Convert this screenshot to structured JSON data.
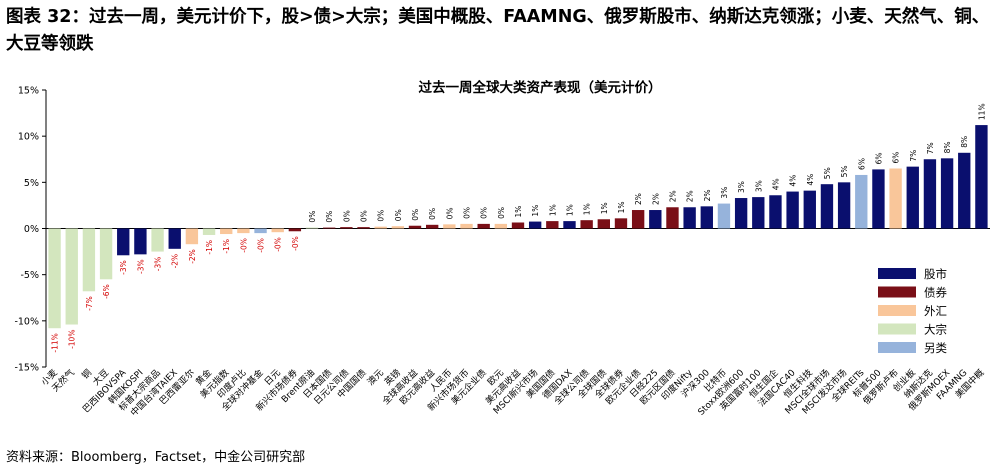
{
  "figure_title": "图表 32：过去一周，美元计价下，股>债>大宗；美国中概股、FAAMNG、俄罗斯股市、纳斯达克领涨；小麦、天然气、铜、大豆等领跌",
  "source": "资料来源：Bloomberg，Factset，中金公司研究部",
  "colors": {
    "股市": "#0a0f6e",
    "债券": "#7a0f17",
    "外汇": "#f9c69a",
    "大宗": "#d3e6be",
    "另类": "#96b3db",
    "negative_label": "#d40000",
    "positive_label": "#000000"
  },
  "chart_data": {
    "type": "bar",
    "title": "过去一周全球大类资产表现（美元计价）",
    "xlabel": "",
    "ylabel": "",
    "ylim": [
      -15,
      15
    ],
    "yticks": [
      -15,
      -10,
      -5,
      0,
      5,
      10,
      15
    ],
    "ytick_labels": [
      "-15%",
      "-10%",
      "-5%",
      "0%",
      "5%",
      "10%",
      "15%"
    ],
    "grid": false,
    "legend_position": "right",
    "legend": [
      "股市",
      "债券",
      "外汇",
      "大宗",
      "另类"
    ],
    "categories": [
      "小麦",
      "天然气",
      "铜",
      "大豆",
      "巴西IBOVSPA",
      "韩国KOSPI",
      "标普大宗商品",
      "中国台湾TAIEX",
      "巴西雷亚尔",
      "黄金",
      "美元指数",
      "印度卢比",
      "全球对冲基金",
      "日元",
      "新兴市场债券",
      "Brent原油",
      "日本国债",
      "日元公司债",
      "中国国债",
      "澳元",
      "英镑",
      "全球高收益",
      "欧元高收益",
      "人民币",
      "新兴市场货币",
      "美元企业债",
      "欧元",
      "美元高收益",
      "MSCI新兴市场",
      "美国国债",
      "德国DAX",
      "全球公司债",
      "全球国债",
      "全球债券",
      "欧元企业债",
      "日经225",
      "欧元区国债",
      "印度Nifty",
      "沪深300",
      "比特币",
      "Stoxx欧洲600",
      "英国富时100",
      "恒生国企",
      "法国CAC40",
      "恒生科技",
      "MSCI全球市场",
      "MSCI发达市场",
      "全球REITs",
      "标普500",
      "俄罗斯卢布",
      "创业板",
      "纳斯达克",
      "俄罗斯MOEX",
      "FAAMNG",
      "美国中概"
    ],
    "values": [
      -10.8,
      -10.4,
      -6.8,
      -5.5,
      -2.9,
      -2.8,
      -2.5,
      -2.2,
      -1.7,
      -0.7,
      -0.6,
      -0.5,
      -0.5,
      -0.4,
      -0.3,
      0.1,
      0.1,
      0.15,
      0.15,
      0.2,
      0.25,
      0.3,
      0.4,
      0.45,
      0.5,
      0.5,
      0.5,
      0.65,
      0.75,
      0.8,
      0.8,
      0.9,
      1.0,
      1.1,
      2.0,
      2.0,
      2.3,
      2.3,
      2.4,
      2.7,
      3.3,
      3.4,
      3.6,
      4.0,
      4.1,
      4.8,
      5.0,
      5.8,
      6.4,
      6.5,
      6.7,
      7.5,
      7.6,
      8.2,
      11.2
    ],
    "data_labels": [
      "-11%",
      "-10%",
      "-7%",
      "-6%",
      "-3%",
      "-3%",
      "-3%",
      "-2%",
      "-2%",
      "-1%",
      "-1%",
      "-0%",
      "-0%",
      "-0%",
      "-0%",
      "0%",
      "0%",
      "0%",
      "0%",
      "0%",
      "0%",
      "0%",
      "0%",
      "0%",
      "0%",
      "0%",
      "0%",
      "1%",
      "1%",
      "1%",
      "1%",
      "1%",
      "1%",
      "1%",
      "2%",
      "2%",
      "2%",
      "2%",
      "2%",
      "3%",
      "3%",
      "3%",
      "4%",
      "4%",
      "4%",
      "5%",
      "5%",
      "6%",
      "6%",
      "6%",
      "7%",
      "7%",
      "8%",
      "8%",
      "11%"
    ],
    "asset_class": [
      "大宗",
      "大宗",
      "大宗",
      "大宗",
      "股市",
      "股市",
      "大宗",
      "股市",
      "外汇",
      "大宗",
      "外汇",
      "外汇",
      "另类",
      "外汇",
      "债券",
      "大宗",
      "债券",
      "债券",
      "债券",
      "外汇",
      "外汇",
      "债券",
      "债券",
      "外汇",
      "外汇",
      "债券",
      "外汇",
      "债券",
      "股市",
      "债券",
      "股市",
      "债券",
      "债券",
      "债券",
      "债券",
      "股市",
      "债券",
      "股市",
      "股市",
      "另类",
      "股市",
      "股市",
      "股市",
      "股市",
      "股市",
      "股市",
      "股市",
      "另类",
      "股市",
      "外汇",
      "股市",
      "股市",
      "股市",
      "股市",
      "股市"
    ]
  }
}
